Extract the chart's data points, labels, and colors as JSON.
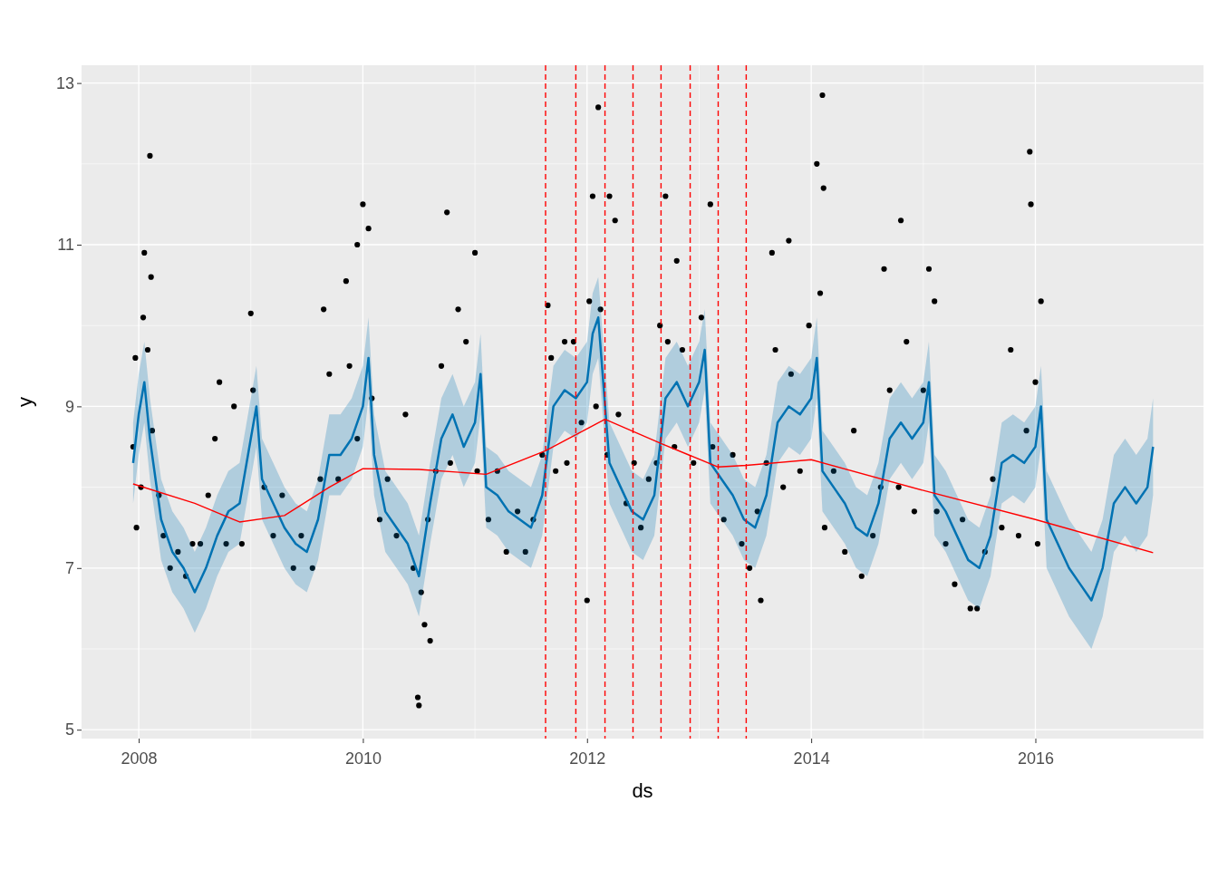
{
  "chart_data": {
    "type": "line",
    "xlabel": "ds",
    "ylabel": "y",
    "xlim": [
      2007.49,
      2017.5
    ],
    "ylim": [
      4.89,
      13.22
    ],
    "xticks": [
      2008,
      2010,
      2012,
      2014,
      2016
    ],
    "yticks": [
      5,
      7,
      9,
      11,
      13
    ],
    "grid": true,
    "ref_lines": [
      {
        "axis": "x",
        "value": 2011.63,
        "color": "#ff0000",
        "line_style": "dashed"
      },
      {
        "axis": "x",
        "value": 2011.9,
        "color": "#ff0000",
        "line_style": "dashed"
      },
      {
        "axis": "x",
        "value": 2012.16,
        "color": "#ff0000",
        "line_style": "dashed"
      },
      {
        "axis": "x",
        "value": 2012.41,
        "color": "#ff0000",
        "line_style": "dashed"
      },
      {
        "axis": "x",
        "value": 2012.66,
        "color": "#ff0000",
        "line_style": "dashed"
      },
      {
        "axis": "x",
        "value": 2012.92,
        "color": "#ff0000",
        "line_style": "dashed"
      },
      {
        "axis": "x",
        "value": 2013.17,
        "color": "#ff0000",
        "line_style": "dashed"
      },
      {
        "axis": "x",
        "value": 2013.42,
        "color": "#ff0000",
        "line_style": "dashed"
      }
    ],
    "series": [
      {
        "type": "scatter",
        "color": "#000000",
        "marker": "circle",
        "x": [
          2007.95,
          2007.97,
          2007.98,
          2008.02,
          2008.04,
          2008.08,
          2008.12,
          2008.18,
          2008.22,
          2008.28,
          2008.35,
          2008.42,
          2008.48,
          2008.55,
          2008.62,
          2008.68,
          2008.72,
          2008.78,
          2008.85,
          2008.92,
          2009.02,
          2009.12,
          2009.2,
          2009.28,
          2009.38,
          2009.45,
          2009.55,
          2009.62,
          2009.7,
          2009.78,
          2009.88,
          2009.95,
          2010.08,
          2010.15,
          2010.22,
          2010.3,
          2010.38,
          2010.45,
          2010.52,
          2010.58,
          2010.65,
          2010.7,
          2010.78,
          2010.85,
          2010.92,
          2011.02,
          2011.12,
          2011.2,
          2011.28,
          2011.38,
          2011.45,
          2011.52,
          2011.6,
          2011.68,
          2011.72,
          2011.82,
          2011.88,
          2011.95,
          2012.02,
          2012.08,
          2012.12,
          2012.18,
          2012.28,
          2012.35,
          2012.42,
          2012.48,
          2012.55,
          2012.62,
          2012.72,
          2012.78,
          2012.85,
          2012.95,
          2013.02,
          2013.12,
          2013.22,
          2013.3,
          2013.38,
          2013.45,
          2013.52,
          2013.6,
          2013.68,
          2013.75,
          2013.82,
          2013.9,
          2013.98,
          2014.08,
          2014.12,
          2014.2,
          2014.3,
          2014.38,
          2014.45,
          2014.55,
          2014.62,
          2014.7,
          2014.78,
          2014.85,
          2014.92,
          2015.0,
          2015.12,
          2015.2,
          2015.28,
          2015.35,
          2015.42,
          2015.48,
          2015.55,
          2015.62,
          2015.7,
          2015.78,
          2015.85,
          2015.92,
          2016.0,
          2016.02,
          2008.1,
          2008.05,
          2008.11,
          2009.0,
          2009.95,
          2010.0,
          2010.05,
          2010.49,
          2010.5,
          2010.55,
          2010.6,
          2010.75,
          2011.0,
          2011.8,
          2012.0,
          2012.05,
          2012.1,
          2012.2,
          2012.25,
          2012.7,
          2013.1,
          2013.55,
          2014.05,
          2014.1,
          2014.11,
          2014.8,
          2014.65,
          2015.05,
          2015.1,
          2015.95,
          2015.96,
          2016.05,
          2013.65,
          2013.8,
          2009.65,
          2009.85,
          2012.8,
          2012.65,
          2011.65
        ],
        "values": [
          8.5,
          9.6,
          7.5,
          8.0,
          10.1,
          9.7,
          8.7,
          7.9,
          7.4,
          7.0,
          7.2,
          6.9,
          7.3,
          7.3,
          7.9,
          8.6,
          9.3,
          7.3,
          9.0,
          7.3,
          9.2,
          8.0,
          7.4,
          7.9,
          7.0,
          7.4,
          7.0,
          8.1,
          9.4,
          8.1,
          9.5,
          8.6,
          9.1,
          7.6,
          8.1,
          7.4,
          8.9,
          7.0,
          6.7,
          7.6,
          8.2,
          9.5,
          8.3,
          10.2,
          9.8,
          8.2,
          7.6,
          8.2,
          7.2,
          7.7,
          7.2,
          7.6,
          8.4,
          9.6,
          8.2,
          8.3,
          9.8,
          8.8,
          10.3,
          9.0,
          10.2,
          8.4,
          8.9,
          7.8,
          8.3,
          7.5,
          8.1,
          8.3,
          9.8,
          8.5,
          9.7,
          8.3,
          10.1,
          8.5,
          7.6,
          8.4,
          7.3,
          7.0,
          7.7,
          8.3,
          9.7,
          8.0,
          9.4,
          8.2,
          10.0,
          10.4,
          7.5,
          8.2,
          7.2,
          8.7,
          6.9,
          7.4,
          8.0,
          9.2,
          8.0,
          9.8,
          7.7,
          9.2,
          7.7,
          7.3,
          6.8,
          7.6,
          6.5,
          6.5,
          7.2,
          8.1,
          7.5,
          9.7,
          7.4,
          8.7,
          9.3,
          7.3,
          12.1,
          10.9,
          10.6,
          10.15,
          11.0,
          11.5,
          11.2,
          5.4,
          5.3,
          6.3,
          6.1,
          11.4,
          10.9,
          9.8,
          6.6,
          11.6,
          12.7,
          11.6,
          11.3,
          11.6,
          11.5,
          6.6,
          12.0,
          12.85,
          11.7,
          11.3,
          10.7,
          10.7,
          10.3,
          12.15,
          11.5,
          10.3,
          10.9,
          11.05,
          10.2,
          10.55,
          10.8,
          10.0,
          10.25
        ]
      },
      {
        "type": "line",
        "color": "#0072b2",
        "marker": "none",
        "x": [
          2007.95,
          2008.0,
          2008.05,
          2008.1,
          2008.2,
          2008.3,
          2008.4,
          2008.5,
          2008.6,
          2008.7,
          2008.8,
          2008.9,
          2009.0,
          2009.05,
          2009.1,
          2009.2,
          2009.3,
          2009.4,
          2009.5,
          2009.6,
          2009.7,
          2009.8,
          2009.9,
          2010.0,
          2010.05,
          2010.1,
          2010.2,
          2010.3,
          2010.4,
          2010.5,
          2010.6,
          2010.7,
          2010.8,
          2010.9,
          2011.0,
          2011.05,
          2011.1,
          2011.2,
          2011.3,
          2011.4,
          2011.5,
          2011.6,
          2011.7,
          2011.8,
          2011.9,
          2012.0,
          2012.05,
          2012.1,
          2012.2,
          2012.3,
          2012.4,
          2012.5,
          2012.6,
          2012.7,
          2012.8,
          2012.9,
          2013.0,
          2013.05,
          2013.1,
          2013.2,
          2013.3,
          2013.4,
          2013.5,
          2013.6,
          2013.7,
          2013.8,
          2013.9,
          2014.0,
          2014.05,
          2014.1,
          2014.2,
          2014.3,
          2014.4,
          2014.5,
          2014.6,
          2014.7,
          2014.8,
          2014.9,
          2015.0,
          2015.05,
          2015.1,
          2015.2,
          2015.3,
          2015.4,
          2015.5,
          2015.6,
          2015.7,
          2015.8,
          2015.9,
          2016.0,
          2016.05,
          2016.1,
          2016.2,
          2016.3,
          2016.4,
          2016.5,
          2016.6,
          2016.7,
          2016.8,
          2016.9,
          2017.0,
          2017.05
        ],
        "values": [
          8.3,
          8.9,
          9.3,
          8.6,
          7.6,
          7.2,
          7.0,
          6.7,
          7.0,
          7.4,
          7.7,
          7.8,
          8.6,
          9.0,
          8.1,
          7.8,
          7.5,
          7.3,
          7.2,
          7.6,
          8.4,
          8.4,
          8.6,
          9.0,
          9.6,
          8.4,
          7.7,
          7.5,
          7.3,
          6.9,
          7.8,
          8.6,
          8.9,
          8.5,
          8.8,
          9.4,
          8.0,
          7.9,
          7.7,
          7.6,
          7.5,
          7.9,
          9.0,
          9.2,
          9.1,
          9.3,
          9.9,
          10.1,
          8.3,
          8.0,
          7.7,
          7.6,
          7.9,
          9.1,
          9.3,
          9.0,
          9.3,
          9.7,
          8.3,
          8.1,
          7.9,
          7.6,
          7.5,
          7.9,
          8.8,
          9.0,
          8.9,
          9.1,
          9.6,
          8.2,
          8.0,
          7.8,
          7.5,
          7.4,
          7.8,
          8.6,
          8.8,
          8.6,
          8.8,
          9.3,
          7.9,
          7.7,
          7.4,
          7.1,
          7.0,
          7.4,
          8.3,
          8.4,
          8.3,
          8.5,
          9.0,
          7.6,
          7.3,
          7.0,
          6.8,
          6.6,
          7.0,
          7.8,
          8.0,
          7.8,
          8.0,
          8.5
        ],
        "lower": [
          7.8,
          8.4,
          8.8,
          8.1,
          7.1,
          6.7,
          6.5,
          6.2,
          6.5,
          6.9,
          7.2,
          7.3,
          8.1,
          8.5,
          7.6,
          7.3,
          7.0,
          6.8,
          6.7,
          7.1,
          7.9,
          7.9,
          8.1,
          8.5,
          9.1,
          7.9,
          7.2,
          7.0,
          6.8,
          6.4,
          7.3,
          8.1,
          8.4,
          8.0,
          8.3,
          8.9,
          7.5,
          7.4,
          7.2,
          7.1,
          7.0,
          7.4,
          8.5,
          8.7,
          8.6,
          8.8,
          9.4,
          9.6,
          7.8,
          7.5,
          7.2,
          7.1,
          7.4,
          8.6,
          8.8,
          8.5,
          8.8,
          9.2,
          7.8,
          7.6,
          7.4,
          7.1,
          7.0,
          7.4,
          8.3,
          8.5,
          8.4,
          8.6,
          9.1,
          7.7,
          7.5,
          7.3,
          7.0,
          6.9,
          7.3,
          8.1,
          8.3,
          8.1,
          8.3,
          8.8,
          7.4,
          7.2,
          6.9,
          6.6,
          6.5,
          6.9,
          7.8,
          7.9,
          7.8,
          8.0,
          8.5,
          7.0,
          6.7,
          6.4,
          6.2,
          6.0,
          6.4,
          7.2,
          7.4,
          7.2,
          7.4,
          7.9
        ],
        "upper": [
          8.8,
          9.4,
          9.8,
          9.1,
          8.1,
          7.7,
          7.5,
          7.2,
          7.5,
          7.9,
          8.2,
          8.3,
          9.1,
          9.5,
          8.6,
          8.3,
          8.0,
          7.8,
          7.7,
          8.1,
          8.9,
          8.9,
          9.1,
          9.5,
          10.1,
          8.9,
          8.2,
          8.0,
          7.8,
          7.4,
          8.3,
          9.1,
          9.4,
          9.0,
          9.3,
          9.9,
          8.5,
          8.4,
          8.2,
          8.1,
          8.0,
          8.4,
          9.5,
          9.7,
          9.6,
          9.8,
          10.4,
          10.6,
          8.8,
          8.5,
          8.2,
          8.1,
          8.4,
          9.6,
          9.8,
          9.5,
          9.8,
          10.2,
          8.8,
          8.6,
          8.4,
          8.1,
          8.0,
          8.4,
          9.3,
          9.5,
          9.4,
          9.6,
          10.1,
          8.7,
          8.5,
          8.3,
          8.0,
          7.9,
          8.3,
          9.1,
          9.3,
          9.1,
          9.3,
          9.8,
          8.4,
          8.2,
          7.9,
          7.6,
          7.5,
          7.9,
          8.8,
          8.9,
          8.8,
          9.0,
          9.5,
          8.2,
          7.9,
          7.6,
          7.4,
          7.2,
          7.6,
          8.4,
          8.6,
          8.4,
          8.6,
          9.1
        ]
      },
      {
        "color": "#ff0000",
        "marker": "none",
        "x": [
          2007.95,
          2008.5,
          2008.9,
          2009.3,
          2009.7,
          2010.0,
          2010.5,
          2011.1,
          2011.63,
          2012.16,
          2012.66,
          2013.17,
          2013.42,
          2014.0,
          2015.0,
          2016.0,
          2017.05
        ],
        "values": [
          8.04,
          7.8,
          7.57,
          7.65,
          8.0,
          8.23,
          8.22,
          8.16,
          8.45,
          8.84,
          8.54,
          8.25,
          8.27,
          8.34,
          7.96,
          7.6,
          7.19
        ]
      }
    ]
  }
}
